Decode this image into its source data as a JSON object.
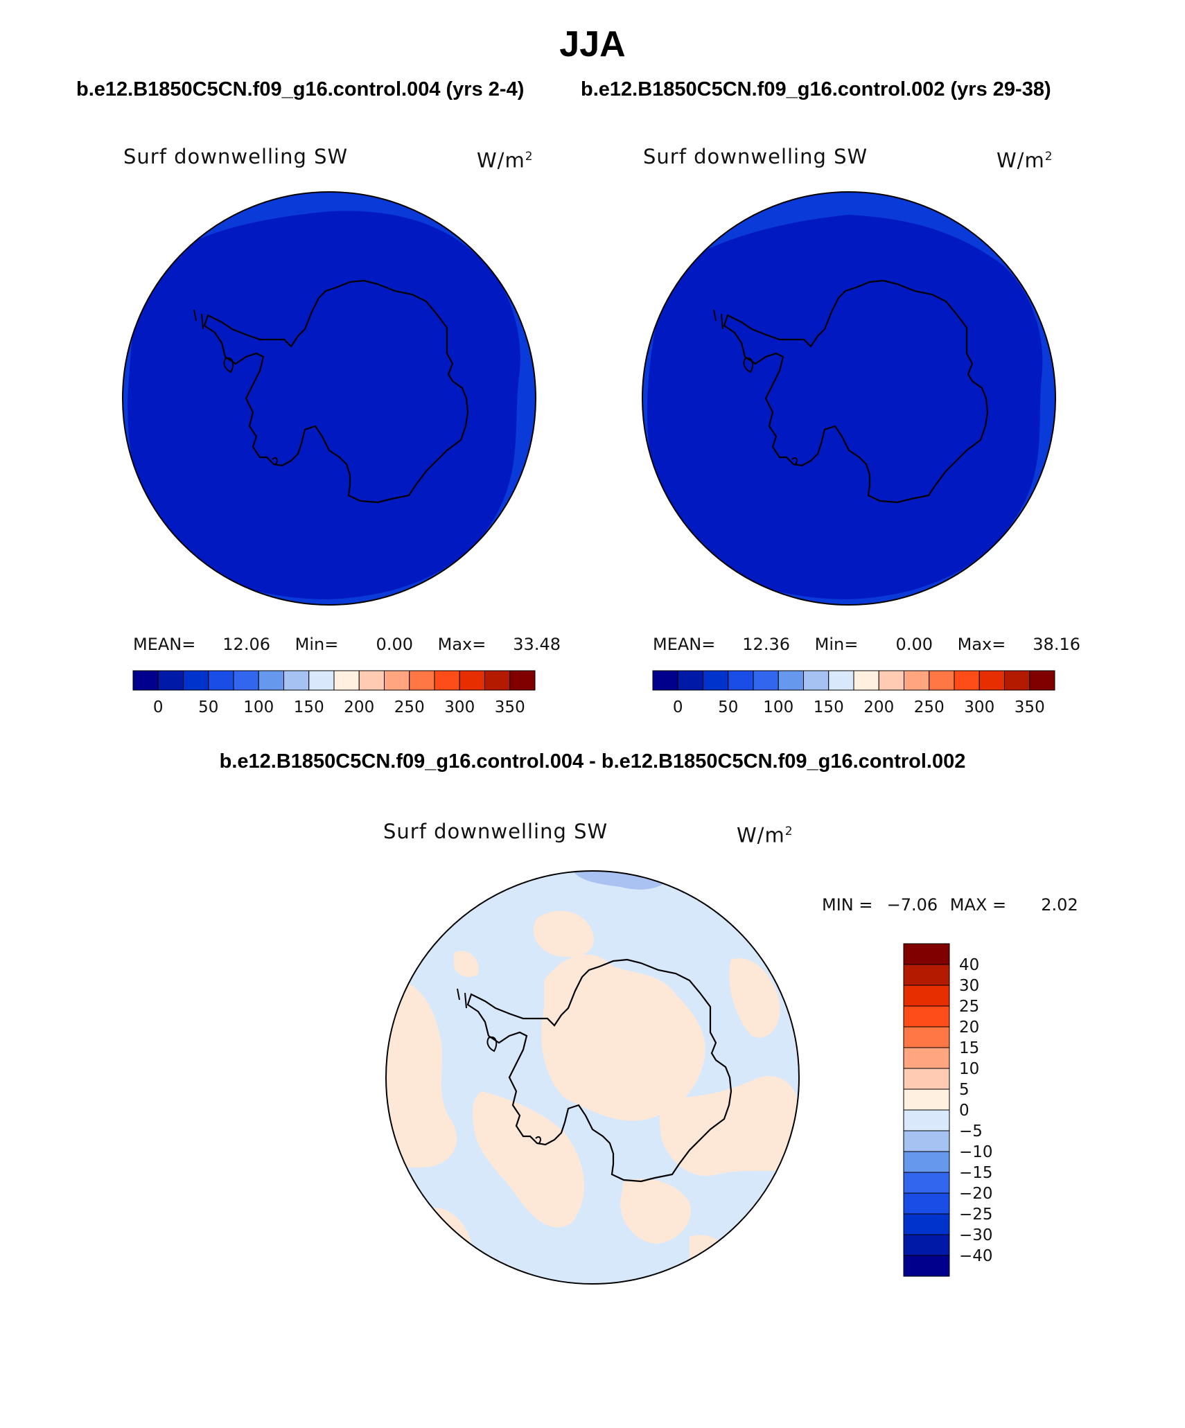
{
  "figure": {
    "season": "JJA",
    "top_left_case": "b.e12.B1850C5CN.f09_g16.control.004 (yrs 2-4)",
    "top_right_case": "b.e12.B1850C5CN.f09_g16.control.002 (yrs 29-38)",
    "diff_title": "b.e12.B1850C5CN.f09_g16.control.004 - b.e12.B1850C5CN.f09_g16.control.002"
  },
  "panels": {
    "left": {
      "variable": "Surf downwelling SW",
      "units": "W/m",
      "units_sup": "2",
      "mean_label": "MEAN=",
      "mean_value": "12.06",
      "min_label": "Min=",
      "min_value": "0.00",
      "max_label": "Max=",
      "max_value": "33.48"
    },
    "right": {
      "variable": "Surf downwelling SW",
      "units": "W/m",
      "units_sup": "2",
      "mean_label": "MEAN=",
      "mean_value": "12.36",
      "min_label": "Min=",
      "min_value": "0.00",
      "max_label": "Max=",
      "max_value": "38.16"
    },
    "diff": {
      "variable": "Surf downwelling SW",
      "units": "W/m",
      "units_sup": "2",
      "min_label": "MIN =",
      "min_value": "−7.06",
      "max_label": "MAX =",
      "max_value": "2.02"
    }
  },
  "colorbars": {
    "abs_colors": [
      "#00008c",
      "#0019a6",
      "#0033cc",
      "#1a4ce6",
      "#3366ee",
      "#6699ee",
      "#a6c2f2",
      "#d9e8fb",
      "#fff0e0",
      "#ffccb3",
      "#ffa680",
      "#ff7744",
      "#ff4d1a",
      "#e62e00",
      "#b31a00",
      "#800000"
    ],
    "abs_tick_labels": [
      "0",
      "50",
      "100",
      "150",
      "200",
      "250",
      "300",
      "350"
    ],
    "diff_colors": [
      "#00008c",
      "#0019a6",
      "#0033cc",
      "#1a4ce6",
      "#3366ee",
      "#6699ee",
      "#a6c2f2",
      "#d9e8fb",
      "#fff0e0",
      "#ffccb3",
      "#ffa680",
      "#ff7744",
      "#ff4d1a",
      "#e62e00",
      "#b31a00",
      "#800000"
    ],
    "diff_tick_labels": [
      "−40",
      "−30",
      "−25",
      "−20",
      "−15",
      "−10",
      "−5",
      "0",
      "5",
      "10",
      "15",
      "20",
      "25",
      "30",
      "40"
    ]
  },
  "map_colors": {
    "abs_interior": "#0019c0",
    "abs_edge": "#0a3ad8",
    "diff_background": "#d8e8fb",
    "diff_positive": "#fde8d8",
    "diff_negative_patch": "#a9c2f2",
    "coastline": "#000000"
  }
}
